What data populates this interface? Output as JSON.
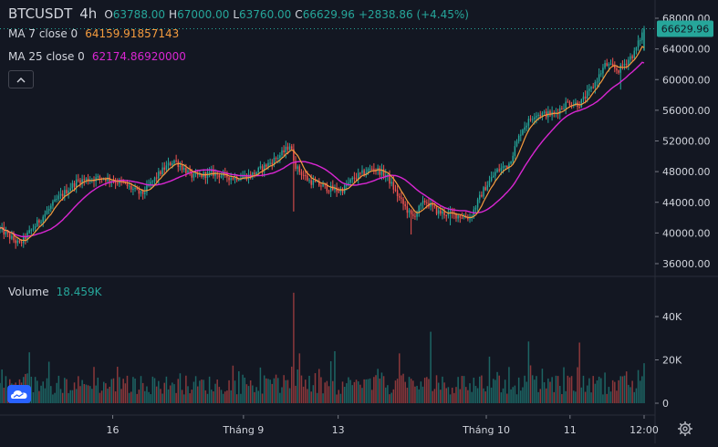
{
  "header": {
    "symbol": "BTCUSDT",
    "timeframe": "4h",
    "open_label": "O",
    "open_value": "63788.00",
    "high_label": "H",
    "high_value": "67000.00",
    "low_label": "L",
    "low_value": "63760.00",
    "close_label": "C",
    "close_value": "66629.96",
    "change": "+2838.86 (+4.45%)"
  },
  "indicators": {
    "ma7": {
      "label": "MA 7 close 0",
      "value": "64159.91857143",
      "color": "#f59b3e"
    },
    "ma25": {
      "label": "MA 25 close 0",
      "value": "62174.86920000",
      "color": "#d926d2"
    }
  },
  "volume_pane": {
    "label": "Volume",
    "value": "18.459K"
  },
  "price_axis": {
    "ticks": [
      "68000.00",
      "64000.00",
      "60000.00",
      "56000.00",
      "52000.00",
      "48000.00",
      "44000.00",
      "40000.00",
      "36000.00"
    ],
    "current_price": "66629.96"
  },
  "volume_axis": {
    "ticks": [
      "40K",
      "20K",
      "0"
    ]
  },
  "time_axis": {
    "ticks": [
      {
        "label": "16",
        "frac": 0.175
      },
      {
        "label": "Tháng 9",
        "frac": 0.378
      },
      {
        "label": "13",
        "frac": 0.525
      },
      {
        "label": "Tháng 10",
        "frac": 0.755
      },
      {
        "label": "11",
        "frac": 0.885
      },
      {
        "label": "12:00",
        "frac": 1.0
      }
    ]
  },
  "colors": {
    "background": "#131722",
    "up": "#26a69a",
    "down": "#ef5350",
    "grid": "#1e222d",
    "text": "#d1d4dc",
    "accent": "#2962ff"
  },
  "chart_data": {
    "type": "candlestick",
    "symbol": "BTCUSDT",
    "interval": "4h",
    "ylim": [
      35000,
      69200
    ],
    "volume_ylim": [
      0,
      52000
    ],
    "guide_points": [
      [
        0.0,
        40500
      ],
      [
        0.03,
        38500
      ],
      [
        0.06,
        41500
      ],
      [
        0.09,
        44500
      ],
      [
        0.12,
        46800
      ],
      [
        0.16,
        47200
      ],
      [
        0.19,
        46500
      ],
      [
        0.22,
        45000
      ],
      [
        0.25,
        48000
      ],
      [
        0.27,
        49500
      ],
      [
        0.3,
        47300
      ],
      [
        0.33,
        47800
      ],
      [
        0.36,
        47200
      ],
      [
        0.39,
        47500
      ],
      [
        0.42,
        49200
      ],
      [
        0.44,
        50500
      ],
      [
        0.45,
        51500
      ],
      [
        0.46,
        48500
      ],
      [
        0.48,
        46800
      ],
      [
        0.51,
        45800
      ],
      [
        0.53,
        45500
      ],
      [
        0.55,
        47200
      ],
      [
        0.58,
        48500
      ],
      [
        0.6,
        47500
      ],
      [
        0.62,
        44500
      ],
      [
        0.64,
        42000
      ],
      [
        0.66,
        44200
      ],
      [
        0.68,
        42700
      ],
      [
        0.71,
        42300
      ],
      [
        0.73,
        42000
      ],
      [
        0.75,
        45500
      ],
      [
        0.77,
        48000
      ],
      [
        0.79,
        49000
      ],
      [
        0.81,
        53500
      ],
      [
        0.83,
        55500
      ],
      [
        0.86,
        55500
      ],
      [
        0.88,
        57000
      ],
      [
        0.9,
        56800
      ],
      [
        0.92,
        59000
      ],
      [
        0.94,
        62000
      ],
      [
        0.96,
        61200
      ],
      [
        0.985,
        63500
      ],
      [
        1.0,
        66630
      ]
    ],
    "volume_spikes": [
      {
        "frac": 0.045,
        "value": 23500
      },
      {
        "frac": 0.455,
        "value": 51000
      },
      {
        "frac": 0.465,
        "value": 23000
      },
      {
        "frac": 0.52,
        "value": 24000
      },
      {
        "frac": 0.62,
        "value": 23000
      },
      {
        "frac": 0.67,
        "value": 33000
      },
      {
        "frac": 0.76,
        "value": 21500
      },
      {
        "frac": 0.82,
        "value": 28500
      },
      {
        "frac": 0.9,
        "value": 28000
      }
    ],
    "ma7_last": 64159.91857143,
    "ma25_last": 62174.8692,
    "last_close": 66629.96,
    "last_volume": 18459
  }
}
